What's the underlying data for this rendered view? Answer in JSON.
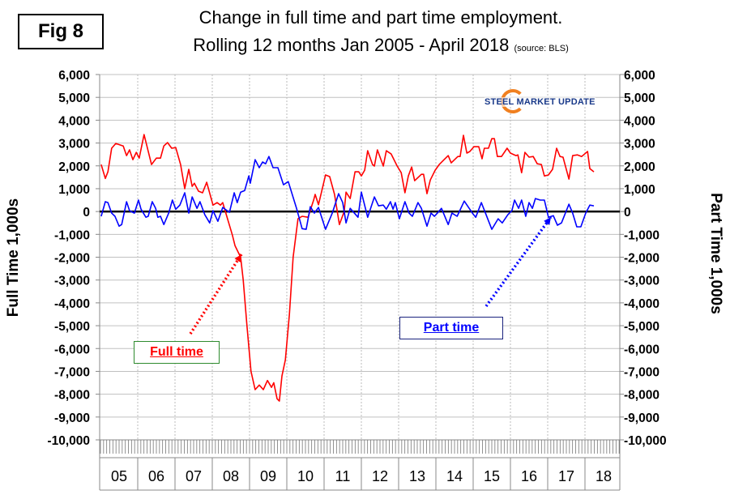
{
  "fig_label": "Fig 8",
  "colors": {
    "full_time": "#ff0000",
    "part_time": "#0000ff",
    "grid": "#c0c0c0"
  },
  "chart_data": {
    "type": "line",
    "title": "Change in full time and part time employment.",
    "subtitle": "Rolling 12 months Jan 2005 - April 2018",
    "source": "(source: BLS)",
    "ylabel_left": "Full Time 1,000s",
    "ylabel_right": "Part Time 1,000s",
    "ylim": [
      -10000,
      6000
    ],
    "yticks": [
      "6,000",
      "5,000",
      "4,000",
      "3,000",
      "2,000",
      "1,000",
      "0",
      "-1,000",
      "-2,000",
      "-3,000",
      "-4,000",
      "-5,000",
      "-6,000",
      "-7,000",
      "-8,000",
      "-9,000",
      "-10,000"
    ],
    "xlim": [
      2005,
      2019
    ],
    "xticks": [
      "05",
      "06",
      "07",
      "08",
      "09",
      "10",
      "11",
      "12",
      "13",
      "14",
      "15",
      "16",
      "17",
      "18"
    ],
    "grid": true,
    "logo": "STEEL MARKET UPDATE",
    "series": [
      {
        "name": "Full time",
        "x": [
          2005.02,
          2005.13,
          2005.2,
          2005.3,
          2005.41,
          2005.61,
          2005.7,
          2005.78,
          2005.87,
          2005.96,
          2006.04,
          2006.17,
          2006.37,
          2006.5,
          2006.61,
          2006.7,
          2006.8,
          2006.91,
          2007.02,
          2007.15,
          2007.26,
          2007.37,
          2007.46,
          2007.52,
          2007.63,
          2007.74,
          2007.85,
          2008.02,
          2008.13,
          2008.22,
          2008.28,
          2008.39,
          2008.54,
          2008.61,
          2008.76,
          2008.83,
          2008.93,
          2009.04,
          2009.15,
          2009.26,
          2009.37,
          2009.48,
          2009.59,
          2009.65,
          2009.74,
          2009.8,
          2009.87,
          2009.96,
          2010.07,
          2010.17,
          2010.3,
          2010.41,
          2010.57,
          2010.72,
          2010.76,
          2010.85,
          2011.04,
          2011.15,
          2011.28,
          2011.41,
          2011.54,
          2011.59,
          2011.7,
          2011.83,
          2011.93,
          2012.0,
          2012.09,
          2012.17,
          2012.3,
          2012.35,
          2012.43,
          2012.59,
          2012.67,
          2012.8,
          2012.96,
          2013.07,
          2013.17,
          2013.26,
          2013.35,
          2013.43,
          2013.61,
          2013.67,
          2013.76,
          2013.85,
          2013.98,
          2014.09,
          2014.22,
          2014.33,
          2014.41,
          2014.59,
          2014.65,
          2014.74,
          2014.83,
          2014.91,
          2015.02,
          2015.15,
          2015.24,
          2015.3,
          2015.41,
          2015.5,
          2015.57,
          2015.65,
          2015.76,
          2015.91,
          2016.0,
          2016.15,
          2016.2,
          2016.3,
          2016.39,
          2016.5,
          2016.61,
          2016.72,
          2016.83,
          2016.91,
          2017.02,
          2017.13,
          2017.24,
          2017.33,
          2017.41,
          2017.57,
          2017.67,
          2017.8,
          2017.91,
          2018.07,
          2018.13,
          2018.24
        ],
        "values": [
          2060,
          1450,
          1740,
          2770,
          2980,
          2870,
          2450,
          2700,
          2270,
          2590,
          2340,
          3370,
          2060,
          2340,
          2340,
          2870,
          3020,
          2770,
          2800,
          2060,
          1000,
          1850,
          1100,
          1240,
          890,
          820,
          1280,
          280,
          390,
          280,
          390,
          -210,
          -1030,
          -1500,
          -2000,
          -3000,
          -5000,
          -7000,
          -7800,
          -7600,
          -7800,
          -7400,
          -7700,
          -7500,
          -8200,
          -8300,
          -7200,
          -6500,
          -4500,
          -2000,
          -320,
          -210,
          -250,
          500,
          750,
          300,
          1600,
          1530,
          750,
          -570,
          0,
          850,
          570,
          1740,
          1740,
          1560,
          1810,
          2660,
          2060,
          1990,
          2700,
          1990,
          2660,
          2520,
          1990,
          1700,
          820,
          1560,
          1950,
          1350,
          1630,
          1630,
          780,
          1380,
          1810,
          2060,
          2270,
          2450,
          2130,
          2410,
          2410,
          3340,
          2560,
          2630,
          2840,
          2840,
          2310,
          2770,
          2770,
          3190,
          3190,
          2410,
          2410,
          2770,
          2560,
          2450,
          2480,
          1700,
          2590,
          2380,
          2410,
          2090,
          2060,
          1560,
          1600,
          1850,
          2770,
          2410,
          2380,
          1420,
          2450,
          2480,
          2410,
          2630,
          1880,
          1740
        ]
      },
      {
        "name": "Part time",
        "x": [
          2005.02,
          2005.13,
          2005.2,
          2005.3,
          2005.39,
          2005.5,
          2005.57,
          2005.7,
          2005.78,
          2005.91,
          2006.02,
          2006.09,
          2006.22,
          2006.28,
          2006.39,
          2006.48,
          2006.54,
          2006.61,
          2006.7,
          2006.83,
          2006.93,
          2007.02,
          2007.13,
          2007.26,
          2007.37,
          2007.46,
          2007.59,
          2007.67,
          2007.8,
          2007.93,
          2008.02,
          2008.15,
          2008.28,
          2008.46,
          2008.59,
          2008.67,
          2008.76,
          2008.87,
          2008.98,
          2009.02,
          2009.15,
          2009.26,
          2009.35,
          2009.43,
          2009.52,
          2009.63,
          2009.76,
          2009.91,
          2010.04,
          2010.26,
          2010.41,
          2010.52,
          2010.63,
          2010.74,
          2010.85,
          2011.04,
          2011.22,
          2011.39,
          2011.5,
          2011.59,
          2011.7,
          2011.91,
          2012.0,
          2012.17,
          2012.35,
          2012.46,
          2012.59,
          2012.67,
          2012.78,
          2012.85,
          2012.91,
          2013.02,
          2013.17,
          2013.28,
          2013.37,
          2013.52,
          2013.61,
          2013.76,
          2013.87,
          2013.96,
          2014.04,
          2014.15,
          2014.33,
          2014.43,
          2014.57,
          2014.76,
          2014.98,
          2015.07,
          2015.22,
          2015.33,
          2015.5,
          2015.67,
          2015.78,
          2015.93,
          2016.04,
          2016.11,
          2016.22,
          2016.3,
          2016.41,
          2016.5,
          2016.59,
          2016.67,
          2016.8,
          2016.91,
          2017.02,
          2017.15,
          2017.26,
          2017.37,
          2017.57,
          2017.67,
          2017.78,
          2017.89,
          2018.02,
          2018.13,
          2018.24
        ],
        "values": [
          -210,
          430,
          390,
          -70,
          -210,
          -640,
          -570,
          430,
          35,
          -70,
          500,
          100,
          -250,
          -210,
          430,
          140,
          -250,
          -210,
          -570,
          -70,
          500,
          100,
          280,
          820,
          -70,
          640,
          140,
          430,
          -140,
          -500,
          35,
          -430,
          180,
          -35,
          820,
          390,
          850,
          920,
          1560,
          1240,
          2270,
          1920,
          2170,
          2090,
          2410,
          1920,
          1920,
          1170,
          1310,
          140,
          -750,
          -780,
          210,
          -70,
          180,
          -780,
          -70,
          780,
          390,
          -500,
          140,
          -250,
          850,
          -250,
          640,
          250,
          280,
          100,
          430,
          100,
          390,
          -320,
          430,
          -70,
          -210,
          390,
          140,
          -640,
          -70,
          -210,
          -70,
          140,
          -570,
          -70,
          -210,
          460,
          -70,
          -250,
          390,
          -70,
          -780,
          -320,
          -500,
          -140,
          35,
          500,
          140,
          500,
          -210,
          390,
          140,
          570,
          500,
          500,
          -250,
          -180,
          -600,
          -500,
          320,
          -70,
          -670,
          -670,
          -70,
          280,
          250
        ]
      }
    ],
    "annotations": [
      "Full time",
      "Part time"
    ]
  }
}
